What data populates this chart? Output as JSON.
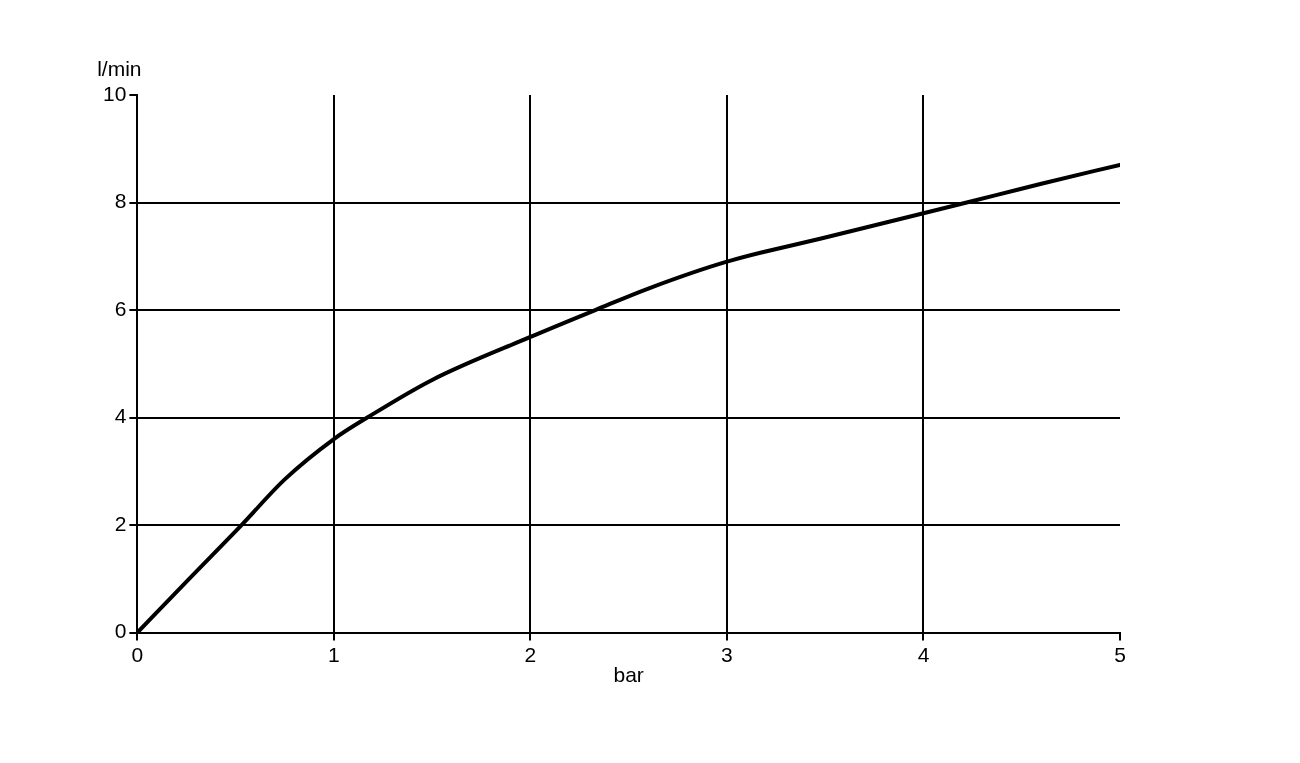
{
  "chart_data": {
    "type": "line",
    "xlabel": "bar",
    "ylabel": "l/min",
    "x": [
      0,
      0.25,
      0.53,
      0.75,
      1,
      1.17,
      1.5,
      2,
      2.33,
      2.6,
      3,
      3.5,
      4,
      4.22,
      4.6,
      5
    ],
    "series": [
      {
        "color": "#000000",
        "values": [
          0,
          0.95,
          2,
          2.85,
          3.6,
          4,
          4.7,
          5.5,
          6,
          6.4,
          6.9,
          7.35,
          7.8,
          8,
          8.35,
          8.7
        ]
      }
    ],
    "xlim": [
      0,
      5
    ],
    "xticks": [
      0,
      1,
      2,
      3,
      4,
      5
    ],
    "ylim": [
      0,
      10
    ],
    "yticks": [
      0,
      2,
      4,
      6,
      8,
      10
    ],
    "grid": true,
    "legend": false,
    "marker": "none",
    "line_style": "solid"
  }
}
